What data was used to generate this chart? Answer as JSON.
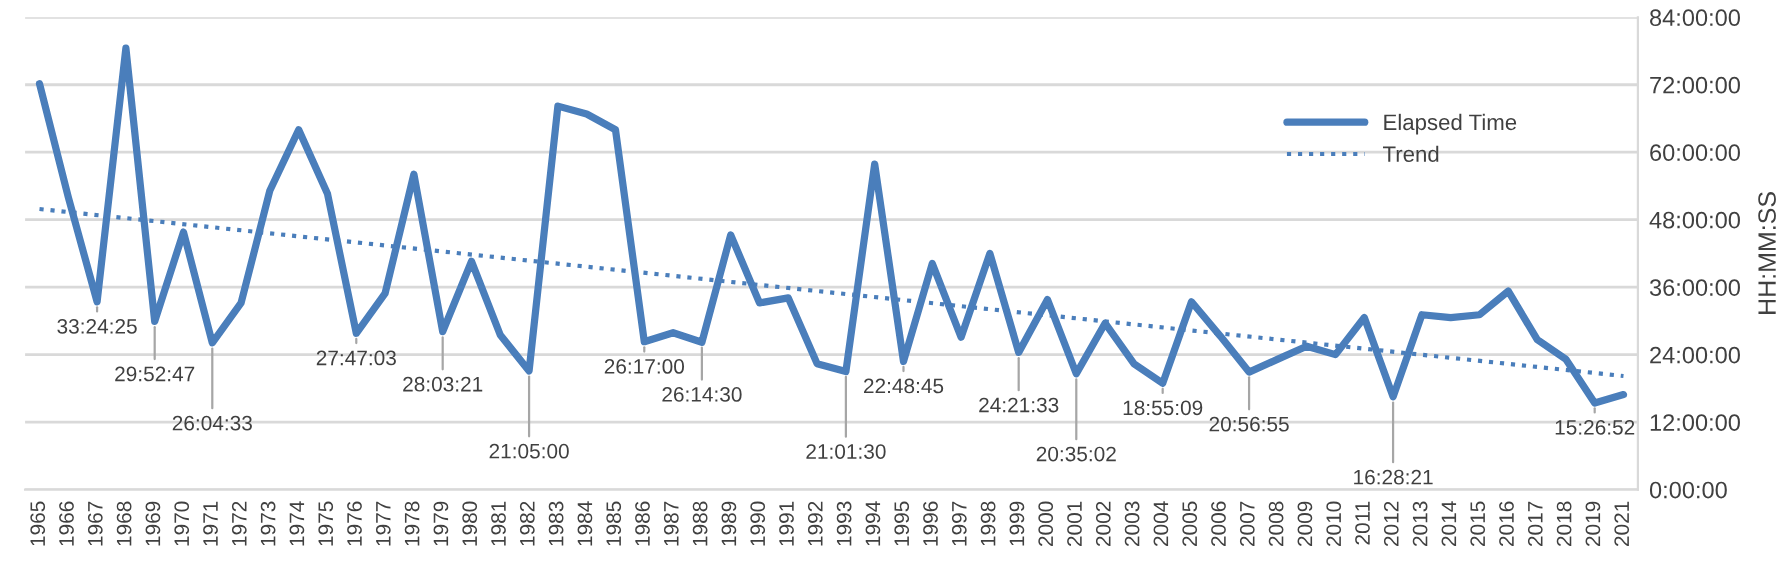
{
  "chart_data": {
    "type": "line",
    "ylabel": "HH:MM:SS",
    "categories": [
      "1965",
      "1966",
      "1967",
      "1968",
      "1969",
      "1970",
      "1971",
      "1972",
      "1973",
      "1974",
      "1975",
      "1976",
      "1977",
      "1978",
      "1979",
      "1980",
      "1981",
      "1982",
      "1983",
      "1984",
      "1985",
      "1986",
      "1987",
      "1988",
      "1989",
      "1990",
      "1991",
      "1992",
      "1993",
      "1994",
      "1995",
      "1996",
      "1997",
      "1998",
      "1999",
      "2000",
      "2001",
      "2002",
      "2003",
      "2004",
      "2005",
      "2006",
      "2007",
      "2008",
      "2009",
      "2010",
      "2011",
      "2012",
      "2013",
      "2014",
      "2015",
      "2016",
      "2017",
      "2018",
      "2019",
      "2021"
    ],
    "series": [
      {
        "name": "Elapsed Time",
        "color": "#4a7ebb",
        "line_style": "solid",
        "values": [
          72.2,
          52,
          33.4,
          78.5,
          29.9,
          45.8,
          26.1,
          33.2,
          53.2,
          64.0,
          52.6,
          27.8,
          34.9,
          56.1,
          28.1,
          40.6,
          27.5,
          21.1,
          68.2,
          66.8,
          64.0,
          26.3,
          27.9,
          26.2,
          45.3,
          33.2,
          34.1,
          22.4,
          21.0,
          57.9,
          22.8,
          40.2,
          27.1,
          42.0,
          24.4,
          33.8,
          20.6,
          29.6,
          22.4,
          18.9,
          33.4,
          27.3,
          20.9,
          23.2,
          25.5,
          24.0,
          30.6,
          16.5,
          31.1,
          30.6,
          31.1,
          35.3,
          26.7,
          23.2,
          15.4,
          16.9
        ]
      },
      {
        "name": "Trend",
        "color": "#4a7ebb",
        "line_style": "dotted",
        "values": [
          49.9,
          null,
          null,
          null,
          null,
          null,
          null,
          null,
          null,
          null,
          null,
          null,
          null,
          null,
          null,
          null,
          null,
          null,
          null,
          null,
          null,
          null,
          null,
          null,
          null,
          null,
          null,
          null,
          null,
          null,
          null,
          null,
          null,
          null,
          null,
          null,
          null,
          null,
          null,
          null,
          null,
          null,
          null,
          null,
          null,
          null,
          null,
          null,
          null,
          null,
          null,
          null,
          null,
          null,
          null,
          20.2
        ]
      }
    ],
    "ylim": [
      0,
      84
    ],
    "yticks": [
      {
        "value": 0,
        "label": "0:00:00"
      },
      {
        "value": 12,
        "label": "12:00:00"
      },
      {
        "value": 24,
        "label": "24:00:00"
      },
      {
        "value": 36,
        "label": "36:00:00"
      },
      {
        "value": 48,
        "label": "48:00:00"
      },
      {
        "value": 60,
        "label": "60:00:00"
      },
      {
        "value": 72,
        "label": "72:00:00"
      },
      {
        "value": 84,
        "label": "84:00:00"
      }
    ],
    "grid": "y",
    "legend": "right",
    "marker": "none",
    "annotations": [
      {
        "text": "33:24:25",
        "x": "1967",
        "y": 33.407
      },
      {
        "text": "29:52:47",
        "x": "1969",
        "y": 29.88
      },
      {
        "text": "26:04:33",
        "x": "1971",
        "y": 26.076
      },
      {
        "text": "27:47:03",
        "x": "1976",
        "y": 27.784
      },
      {
        "text": "28:03:21",
        "x": "1979",
        "y": 28.056
      },
      {
        "text": "21:05:00",
        "x": "1982",
        "y": 21.083
      },
      {
        "text": "26:17:00",
        "x": "1986",
        "y": 26.283
      },
      {
        "text": "26:14:30",
        "x": "1988",
        "y": 26.242
      },
      {
        "text": "21:01:30",
        "x": "1993",
        "y": 21.025
      },
      {
        "text": "22:48:45",
        "x": "1995",
        "y": 22.8125
      },
      {
        "text": "24:21:33",
        "x": "1999",
        "y": 24.359
      },
      {
        "text": "20:35:02",
        "x": "2001",
        "y": 20.584
      },
      {
        "text": "18:55:09",
        "x": "2004",
        "y": 18.919
      },
      {
        "text": "20:56:55",
        "x": "2007",
        "y": 20.949
      },
      {
        "text": "16:28:21",
        "x": "2012",
        "y": 16.473
      },
      {
        "text": "15:26:52",
        "x": "2019",
        "y": 15.448
      }
    ]
  }
}
